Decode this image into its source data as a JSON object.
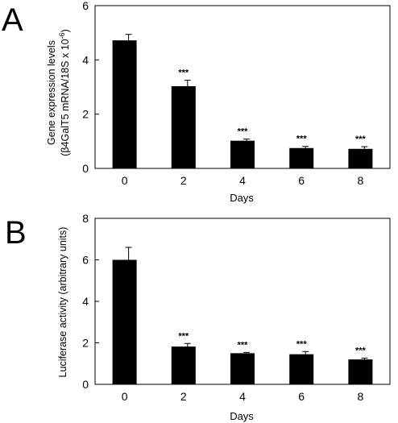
{
  "chart_data": [
    {
      "type": "bar",
      "panel_label": "A",
      "categories": [
        "0",
        "2",
        "4",
        "6",
        "8"
      ],
      "values": [
        4.72,
        3.03,
        1.02,
        0.75,
        0.72
      ],
      "errors": [
        0.22,
        0.22,
        0.06,
        0.06,
        0.08
      ],
      "annotations": [
        "",
        "***",
        "***",
        "***",
        "***"
      ],
      "xlabel": "Days",
      "ylabel_line1": "Gene expression levels",
      "ylabel_line2": "(β4GalT5 mRNA/18S x 10",
      "ylabel_exp": "-6",
      "ylabel_close": ")",
      "ylim": [
        0,
        6
      ],
      "yticks": [
        "0",
        "2",
        "4",
        "6"
      ],
      "bar_color": "#000000",
      "grid": false,
      "legend": "none"
    },
    {
      "type": "bar",
      "panel_label": "B",
      "categories": [
        "0",
        "2",
        "4",
        "6",
        "8"
      ],
      "values": [
        6.0,
        1.82,
        1.5,
        1.45,
        1.2
      ],
      "errors": [
        0.6,
        0.15,
        0.04,
        0.13,
        0.06
      ],
      "annotations": [
        "",
        "***",
        "***",
        "***",
        "***"
      ],
      "xlabel": "Days",
      "ylabel": "Luciferase activity (arbitrary units)",
      "ylim": [
        0,
        8
      ],
      "yticks": [
        "0",
        "2",
        "4",
        "6",
        "8"
      ],
      "bar_color": "#000000",
      "grid": false,
      "legend": "none"
    }
  ]
}
